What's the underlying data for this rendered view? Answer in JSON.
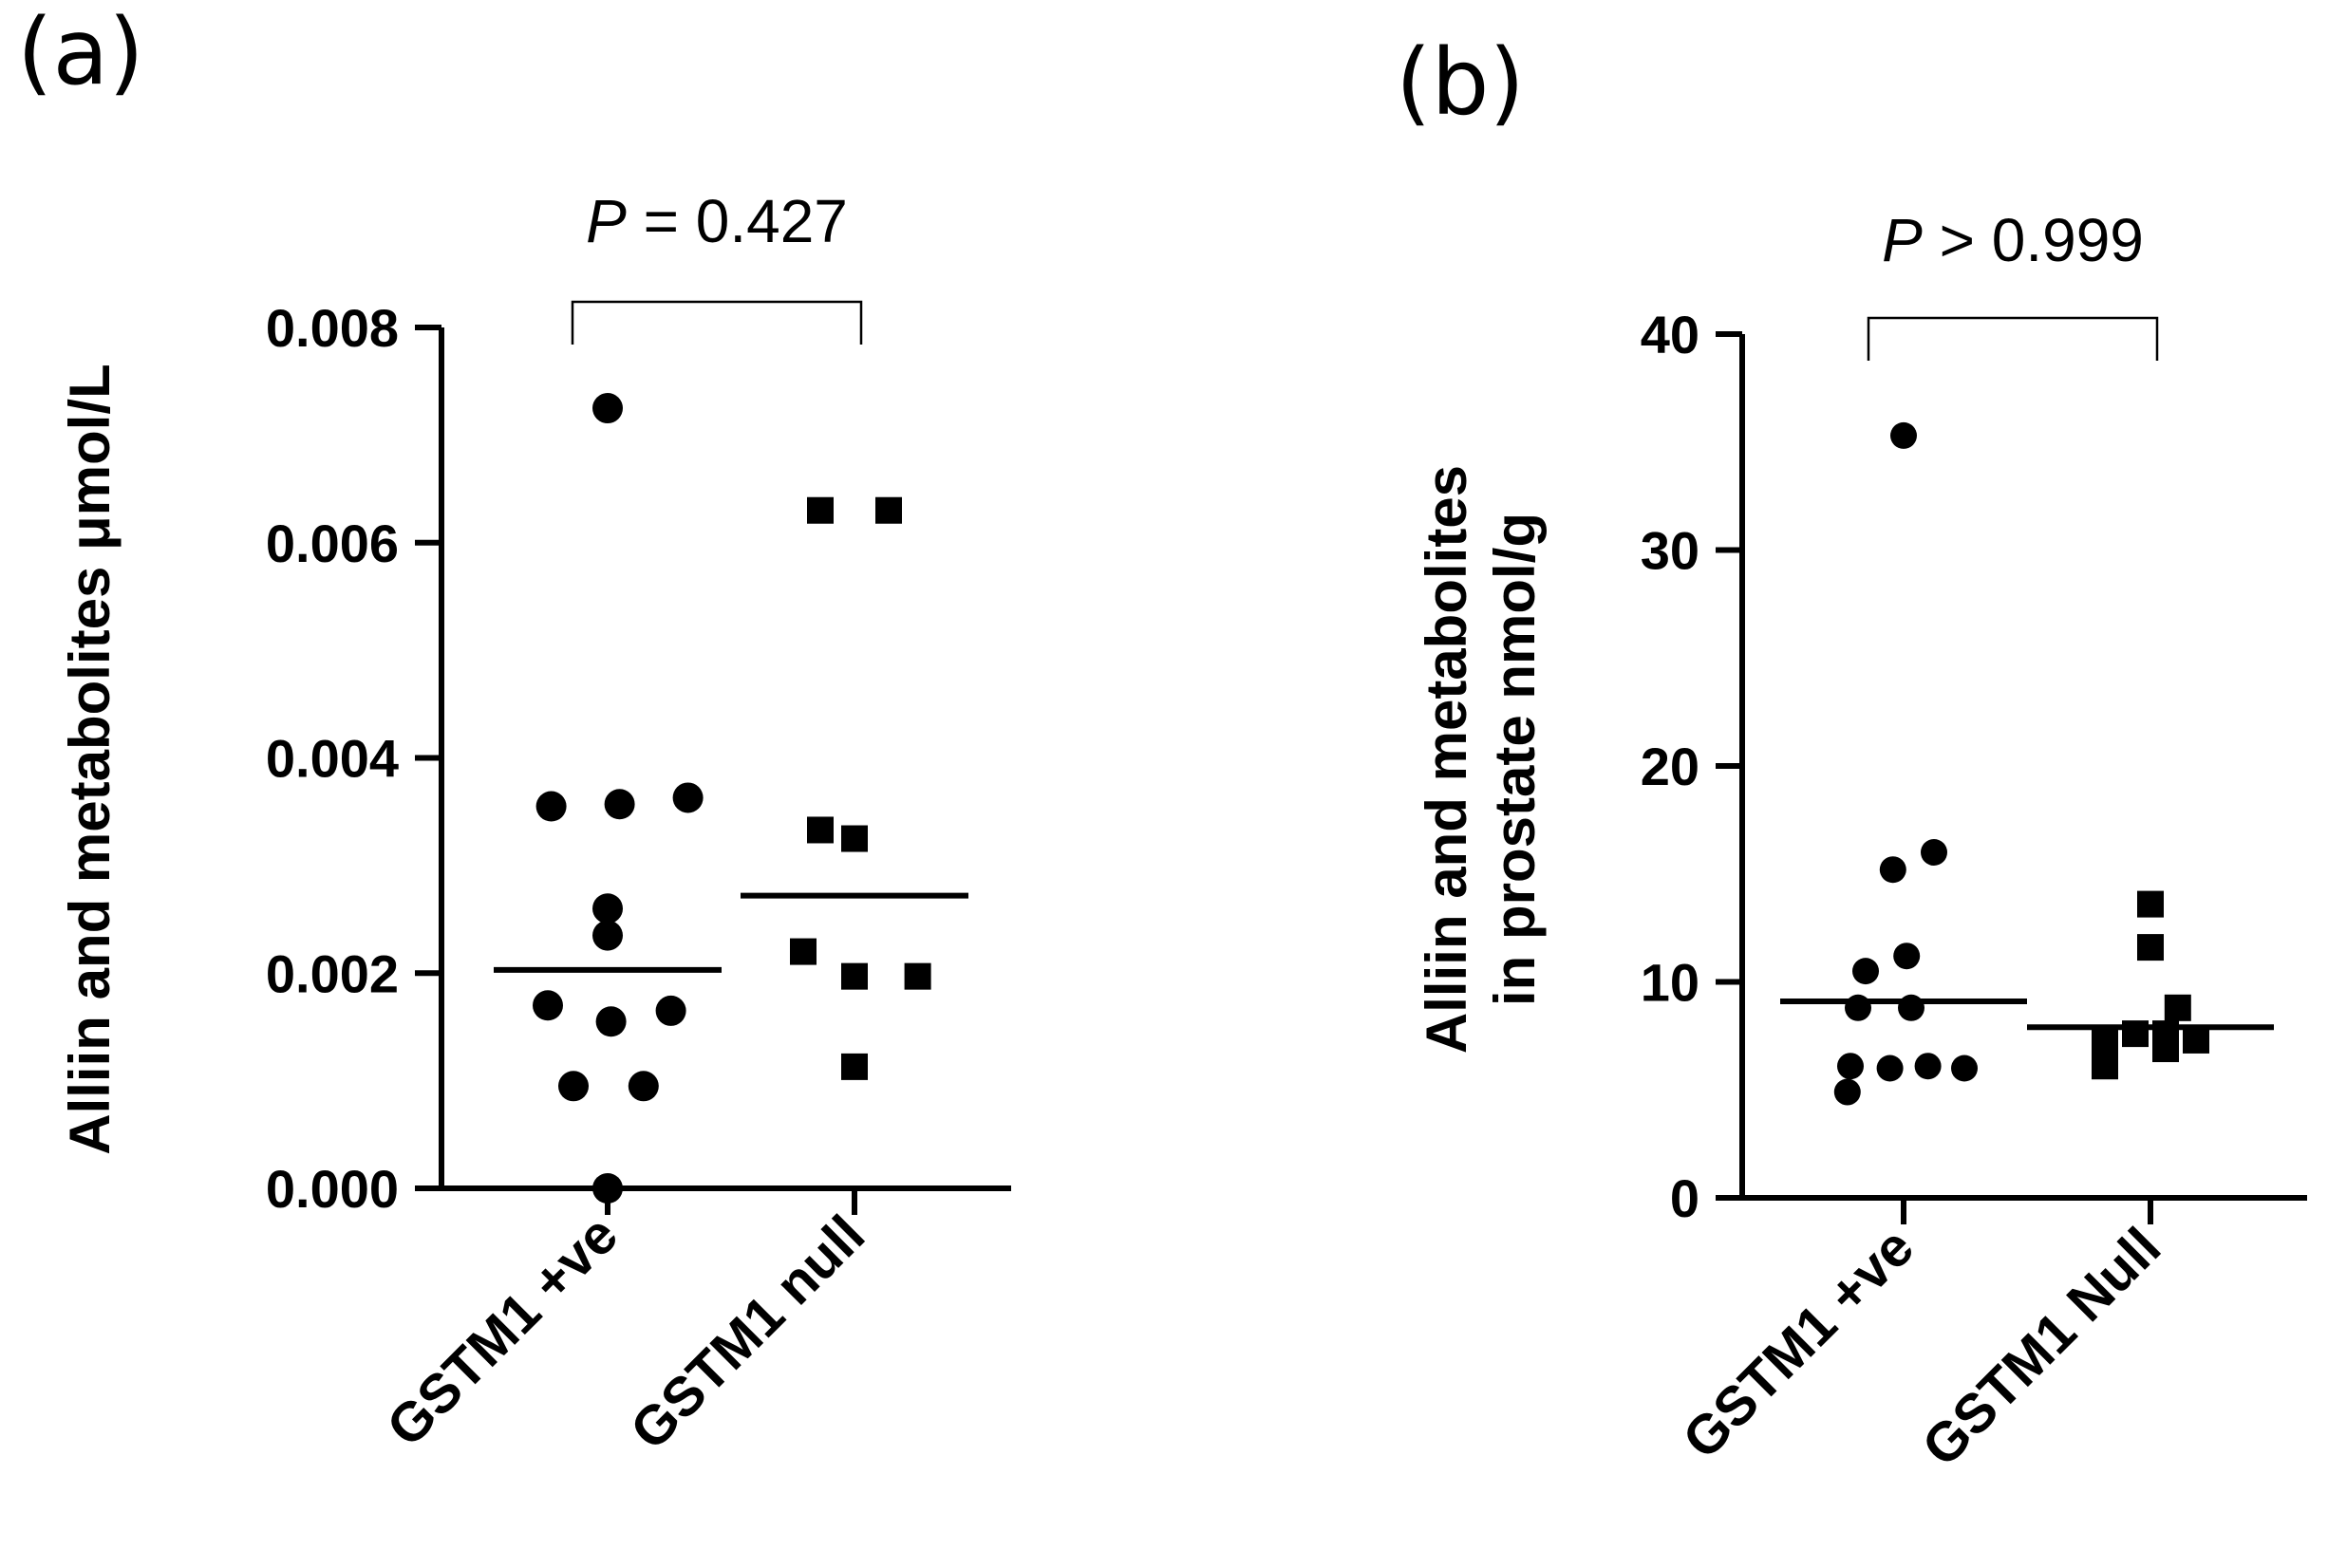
{
  "chart_data": [
    {
      "panel_label": "(a)",
      "type": "scatter",
      "categories": [
        "GSTM1 +ve",
        "GSTM1 null"
      ],
      "ylabel": "Alliin and metabolites μmol/L",
      "ylabel_lines": [
        "Alliin and metabolites μmol/L"
      ],
      "ylim": [
        0,
        0.008
      ],
      "yticks": [
        0,
        0.002,
        0.004,
        0.006,
        0.008
      ],
      "ytick_labels": [
        "0.000",
        "0.002",
        "0.004",
        "0.006",
        "0.008"
      ],
      "pvalue": {
        "italic": "P",
        "text": " = 0.427"
      },
      "series": [
        {
          "name": "GSTM1 +ve",
          "marker": "circle",
          "points": [
            {
              "dx": 0,
              "y": 0.00725
            },
            {
              "dx": -0.33,
              "y": 0.00355
            },
            {
              "dx": 0.07,
              "y": 0.00357
            },
            {
              "dx": 0.47,
              "y": 0.00363
            },
            {
              "dx": 0,
              "y": 0.0026
            },
            {
              "dx": 0,
              "y": 0.00235
            },
            {
              "dx": -0.35,
              "y": 0.0017
            },
            {
              "dx": 0.02,
              "y": 0.00155
            },
            {
              "dx": 0.37,
              "y": 0.00165
            },
            {
              "dx": -0.2,
              "y": 0.00095
            },
            {
              "dx": 0.21,
              "y": 0.00095
            },
            {
              "dx": 0,
              "y": 0.0
            }
          ],
          "median": 0.00203
        },
        {
          "name": "GSTM1 null",
          "marker": "square",
          "points": [
            {
              "dx": -0.2,
              "y": 0.0063
            },
            {
              "dx": 0.2,
              "y": 0.0063
            },
            {
              "dx": -0.2,
              "y": 0.00333
            },
            {
              "dx": 0.0,
              "y": 0.00325
            },
            {
              "dx": -0.3,
              "y": 0.0022
            },
            {
              "dx": 0.0,
              "y": 0.00197
            },
            {
              "dx": 0.37,
              "y": 0.00197
            },
            {
              "dx": 0.0,
              "y": 0.00113
            }
          ],
          "median": 0.00272
        }
      ]
    },
    {
      "panel_label": "(b)",
      "type": "scatter",
      "categories": [
        "GSTM1 +ve",
        "GSTM1 Null"
      ],
      "ylabel": "Alliin and metabolites in prostate nmol/g",
      "ylabel_lines": [
        "Alliin and metabolites",
        "in prostate nmol/g"
      ],
      "ylim": [
        0,
        40
      ],
      "yticks": [
        0,
        10,
        20,
        30,
        40
      ],
      "ytick_labels": [
        "0",
        "10",
        "20",
        "30",
        "40"
      ],
      "pvalue": {
        "italic": "P",
        "text": " > 0.999"
      },
      "series": [
        {
          "name": "GSTM1 +ve",
          "marker": "circle",
          "points": [
            {
              "dx": 0.0,
              "y": 35.3
            },
            {
              "dx": -0.07,
              "y": 15.2
            },
            {
              "dx": 0.2,
              "y": 16.0
            },
            {
              "dx": -0.25,
              "y": 10.5
            },
            {
              "dx": 0.02,
              "y": 11.2
            },
            {
              "dx": -0.3,
              "y": 8.8
            },
            {
              "dx": 0.05,
              "y": 8.8
            },
            {
              "dx": -0.35,
              "y": 6.1
            },
            {
              "dx": -0.09,
              "y": 6.0
            },
            {
              "dx": 0.16,
              "y": 6.1
            },
            {
              "dx": 0.4,
              "y": 6.0
            },
            {
              "dx": -0.37,
              "y": 4.9
            }
          ],
          "median": 9.1
        },
        {
          "name": "GSTM1 Null",
          "marker": "square",
          "points": [
            {
              "dx": 0.0,
              "y": 13.6
            },
            {
              "dx": 0.0,
              "y": 11.6
            },
            {
              "dx": 0.18,
              "y": 8.8
            },
            {
              "dx": -0.3,
              "y": 7.3
            },
            {
              "dx": -0.1,
              "y": 7.6
            },
            {
              "dx": 0.1,
              "y": 7.6
            },
            {
              "dx": 0.3,
              "y": 7.3
            },
            {
              "dx": -0.3,
              "y": 6.1
            },
            {
              "dx": 0.1,
              "y": 6.9
            }
          ],
          "median": 7.9
        }
      ]
    }
  ]
}
